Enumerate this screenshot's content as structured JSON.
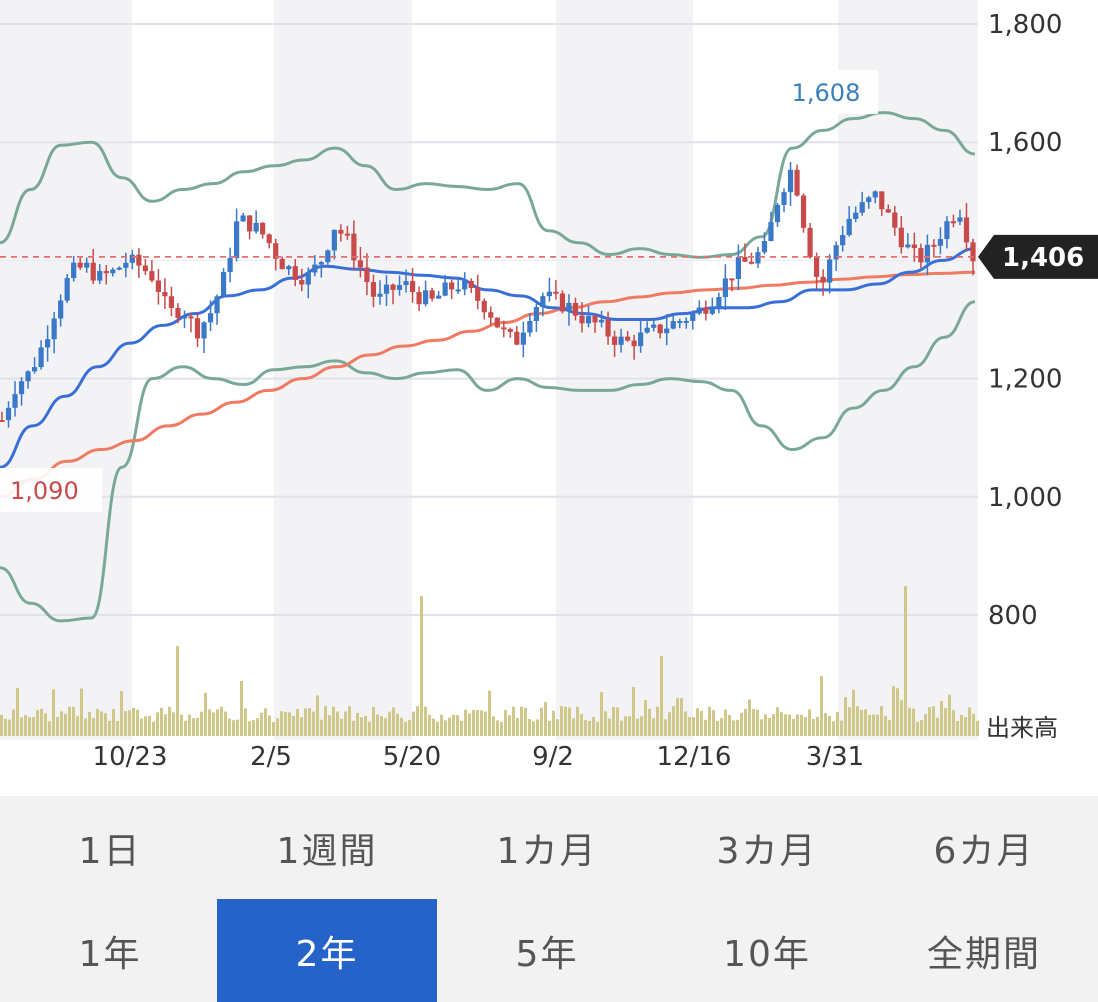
{
  "chart_data": {
    "type": "candlestick",
    "y_axis": {
      "ticks": [
        "1,800",
        "1,600",
        "1,200",
        "1,000",
        "800"
      ],
      "tick_values": [
        1800,
        1600,
        1200,
        1000,
        800
      ],
      "position": "right",
      "ylim": [
        720,
        1820
      ]
    },
    "x_axis": {
      "ticks": [
        "10/23",
        "2/5",
        "5/20",
        "9/2",
        "12/16",
        "3/31"
      ]
    },
    "volume_label": "出来高",
    "annotations": {
      "high": "1,608",
      "low": "1,090",
      "last": "1,406",
      "last_value": 1406,
      "reference_line_value": 1406
    },
    "series": {
      "moving_average_short_color": "#3a6fd8",
      "moving_average_long_color": "#f07a62",
      "bollinger_color": "#7aa898",
      "up_color": "#3a78c8",
      "down_color": "#c84a4a",
      "volume_color": "#cfc88a"
    },
    "close_series_description_anchor": [
      1130,
      1190,
      1210,
      1260,
      1330,
      1380,
      1390,
      1370,
      1380,
      1400,
      1390,
      1370,
      1310,
      1320,
      1280,
      1310,
      1370,
      1470,
      1460,
      1440,
      1400,
      1380,
      1370,
      1400,
      1460,
      1430,
      1380,
      1330,
      1350,
      1360,
      1340,
      1330,
      1350,
      1360,
      1340,
      1320,
      1280,
      1260,
      1310,
      1340,
      1330,
      1320,
      1300,
      1290,
      1270,
      1260,
      1270,
      1280,
      1290,
      1300,
      1310,
      1330,
      1360,
      1390,
      1400,
      1420,
      1510,
      1560,
      1440,
      1350,
      1420,
      1470,
      1490,
      1510,
      1470,
      1430,
      1400,
      1420,
      1460,
      1490,
      1406
    ]
  },
  "periods": {
    "row1": [
      "1日",
      "1週間",
      "1カ月",
      "3カ月",
      "6カ月"
    ],
    "row2": [
      "1年",
      "2年",
      "5年",
      "10年",
      "全期間"
    ],
    "selected": "2年"
  }
}
